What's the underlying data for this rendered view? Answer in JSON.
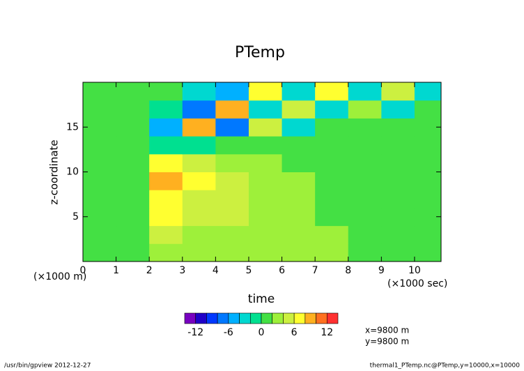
{
  "chart_data": {
    "type": "heatmap",
    "title": "PTemp",
    "x_label": "time",
    "y_label": "z-coordinate",
    "x_unit_note": "(×1000 sec)",
    "y_unit_note": "(×1000 m)",
    "x": [
      0.5,
      1.5,
      2.5,
      3.5,
      4.5,
      5.5,
      6.5,
      7.5,
      8.5,
      9.5,
      10.5
    ],
    "y": [
      1,
      3,
      5,
      7,
      9,
      11,
      13,
      15,
      17,
      19
    ],
    "values": [
      [
        1,
        1,
        3,
        3,
        3,
        3,
        3,
        3,
        1,
        1,
        1
      ],
      [
        1,
        1,
        5,
        3,
        3,
        3,
        3,
        3,
        1,
        1,
        1
      ],
      [
        1,
        1,
        6,
        5,
        5,
        3,
        3,
        1,
        1,
        1,
        1
      ],
      [
        1,
        1,
        6,
        5,
        5,
        3,
        3,
        1,
        1,
        1,
        1
      ],
      [
        1,
        1,
        8,
        7,
        5,
        3,
        3,
        1,
        1,
        1,
        1
      ],
      [
        1,
        1,
        7,
        5,
        3,
        3,
        1,
        1,
        1,
        1,
        1
      ],
      [
        1,
        1,
        -1,
        -1,
        1,
        1,
        1,
        1,
        1,
        1,
        1
      ],
      [
        1,
        1,
        -5,
        9,
        -7,
        5,
        -3,
        1,
        1,
        1,
        1
      ],
      [
        1,
        1,
        -1,
        -7,
        9,
        -3,
        5,
        -3,
        3,
        -3,
        1
      ],
      [
        1,
        1,
        1,
        -3,
        -5,
        7,
        -3,
        7,
        -3,
        5,
        -3
      ]
    ],
    "xlim": [
      0,
      10.8
    ],
    "ylim": [
      0,
      20
    ],
    "xticks": [
      0,
      1,
      2,
      3,
      4,
      5,
      6,
      7,
      8,
      9,
      10
    ],
    "yticks": [
      5,
      10,
      15
    ],
    "colorbar": {
      "levels": [
        -14,
        -12,
        -10,
        -8,
        -6,
        -4,
        -2,
        0,
        2,
        4,
        6,
        8,
        10,
        12,
        14
      ],
      "colors": [
        "#7800c0",
        "#2000c8",
        "#0038ff",
        "#0078ff",
        "#00b0ff",
        "#00d8d0",
        "#00e090",
        "#44e044",
        "#9ef03a",
        "#ccf040",
        "#ffff30",
        "#ffb020",
        "#ff7020",
        "#ff3030"
      ],
      "ticks": [
        -12,
        -6,
        0,
        6,
        12
      ]
    },
    "annotations": [
      "x=9800 m",
      "y=9800 m"
    ]
  },
  "footer": {
    "left": "/usr/bin/gpview  2012-12-27",
    "right": "thermal1_PTemp.nc@PTemp,y=10000,x=10000"
  }
}
